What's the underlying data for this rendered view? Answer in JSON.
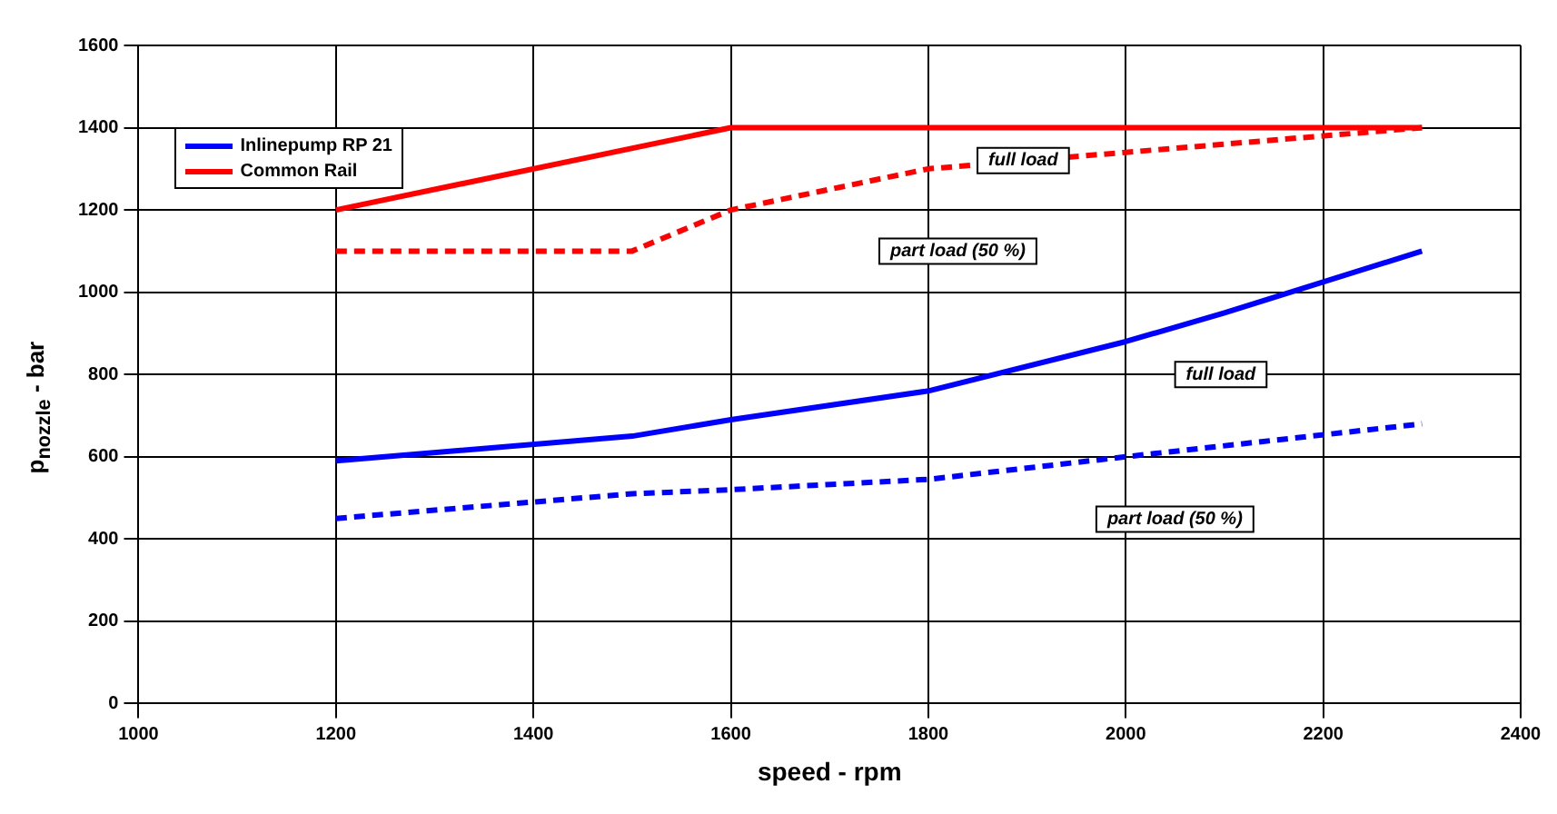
{
  "chart_data": {
    "type": "line",
    "xlabel": "speed - rpm",
    "ylabel": "p$_{nozzle}$ - bar",
    "xlim": [
      1000,
      2400
    ],
    "xticks": [
      1000,
      1200,
      1400,
      1600,
      1800,
      2000,
      2200,
      2400
    ],
    "ylim": [
      0,
      1600
    ],
    "yticks": [
      0,
      200,
      400,
      600,
      800,
      1000,
      1200,
      1400,
      1600
    ],
    "grid": true,
    "legend": "top left",
    "marker": "none",
    "series": [
      {
        "name": "Inlinepump RP 21",
        "color": "#0000ff",
        "line_style": "solid",
        "x": [
          1200,
          1500,
          1600,
          1800,
          2000,
          2100,
          2300
        ],
        "values": [
          590,
          650,
          690,
          760,
          880,
          950,
          1100
        ]
      },
      {
        "name": "Common Rail",
        "color": "#ff0000",
        "line_style": "solid",
        "x": [
          1200,
          1600,
          2300
        ],
        "values": [
          1200,
          1400,
          1400
        ]
      },
      {
        "color": "#ff0000",
        "line_style": "dashed",
        "x": [
          1200,
          1500,
          1600,
          1800,
          2000,
          2300
        ],
        "values": [
          1100,
          1100,
          1200,
          1300,
          1340,
          1400
        ]
      },
      {
        "color": "#0000ff",
        "line_style": "dashed",
        "x": [
          1200,
          1400,
          1500,
          1600,
          1800,
          2000,
          2300
        ],
        "values": [
          450,
          490,
          510,
          520,
          545,
          600,
          680
        ]
      }
    ],
    "annotations": [
      "full load",
      "part load (50 %)",
      "full load",
      "part load (50 %)"
    ]
  }
}
